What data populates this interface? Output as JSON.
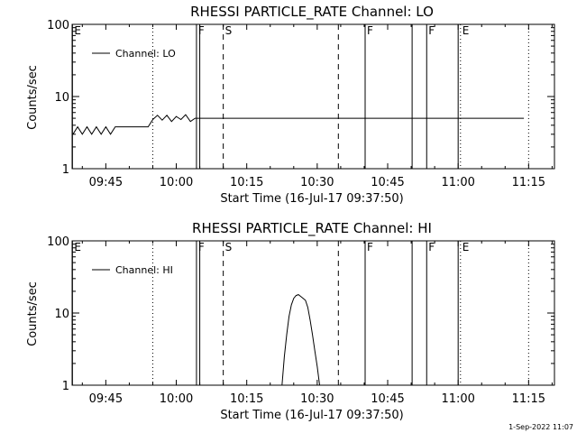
{
  "colors": {
    "background": "#ffffff",
    "foreground": "#000000"
  },
  "footer": {
    "timestamp": "1-Sep-2022 11:07"
  },
  "chart_data": [
    {
      "type": "line",
      "title": "RHESSI PARTICLE_RATE Channel: LO",
      "xlabel": "Start Time (16-Jul-17 09:37:50)",
      "ylabel": "Counts/sec",
      "yscale": "log",
      "ylim": [
        1,
        100
      ],
      "xlim_minutes": [
        37.83,
        78.83
      ],
      "x_tick_minutes": [
        45,
        60,
        75,
        90,
        105,
        120,
        135
      ],
      "x_tick_labels": [
        "09:45",
        "10:00",
        "10:15",
        "10:30",
        "10:45",
        "11:00",
        "11:15"
      ],
      "y_tick_values": [
        1,
        10,
        100
      ],
      "y_tick_labels": [
        "1",
        "10",
        "100"
      ],
      "legend": {
        "label": "Channel: LO",
        "position": "top-left"
      },
      "grid": false,
      "markers": [
        {
          "minute": 37.9,
          "label": "E",
          "style": "solid"
        },
        {
          "minute": 55.0,
          "label": "",
          "style": "dotted"
        },
        {
          "minute": 64.3,
          "label": "F",
          "style": "solid"
        },
        {
          "minute": 65.0,
          "label": "",
          "style": "solid"
        },
        {
          "minute": 70.0,
          "label": "S",
          "style": "dashed"
        },
        {
          "minute": 94.5,
          "label": "",
          "style": "dashed"
        },
        {
          "minute": 100.2,
          "label": "F",
          "style": "solid"
        },
        {
          "minute": 110.2,
          "label": "",
          "style": "solid"
        },
        {
          "minute": 113.3,
          "label": "F",
          "style": "solid"
        },
        {
          "minute": 120.5,
          "label": "E",
          "style": "dotted"
        },
        {
          "minute": 120.0,
          "label": "",
          "style": "solid"
        },
        {
          "minute": 135.0,
          "label": "",
          "style": "dotted"
        }
      ],
      "series": [
        {
          "name": "Channel: LO",
          "x": [
            38.0,
            39.0,
            40.0,
            41.0,
            42.0,
            43.0,
            44.0,
            45.0,
            46.0,
            47.0,
            48.0,
            49.0,
            50.0,
            51.0,
            52.0,
            53.0,
            54.0,
            55.0,
            56.0,
            57.0,
            58.0,
            59.0,
            60.0,
            61.0,
            62.0,
            63.0,
            64.0,
            65.0,
            66.0,
            67.0,
            68.0,
            69.0,
            70.0,
            71.0,
            72.0,
            73.0,
            74.0,
            75.0,
            76.0,
            77.0,
            78.0,
            79.0,
            80.0,
            81.0,
            82.0,
            83.0,
            84.0,
            85.0,
            86.0,
            87.0,
            88.0,
            89.0,
            90.0,
            91.0,
            92.0,
            93.0,
            94.0,
            95.0,
            96.0,
            97.0,
            98.0,
            99.0,
            100.0,
            101.0,
            102.0,
            103.0,
            104.0,
            105.0,
            106.0,
            107.0,
            108.0,
            109.0,
            110.0,
            111.0,
            112.0,
            113.0,
            114.0,
            115.0,
            116.0,
            117.0,
            118.0,
            119.0,
            120.0,
            121.0,
            122.0,
            123.0,
            124.0,
            125.0,
            126.0,
            127.0,
            128.0,
            129.0,
            130.0,
            131.0,
            132.0,
            133.0,
            134.0
          ],
          "y": [
            3.0,
            3.8,
            3.0,
            3.8,
            3.0,
            3.8,
            3.0,
            3.8,
            3.0,
            3.8,
            3.8,
            3.8,
            3.8,
            3.8,
            3.8,
            3.8,
            3.8,
            4.8,
            5.5,
            4.7,
            5.5,
            4.5,
            5.3,
            4.8,
            5.6,
            4.5,
            5.0,
            5.0,
            5.0,
            5.0,
            5.0,
            5.0,
            5.0,
            5.0,
            5.0,
            5.0,
            5.0,
            5.0,
            5.0,
            5.0,
            5.0,
            5.0,
            5.0,
            5.0,
            5.0,
            5.0,
            5.0,
            5.0,
            5.0,
            5.0,
            5.0,
            5.0,
            5.0,
            5.0,
            5.0,
            5.0,
            5.0,
            5.0,
            5.0,
            5.0,
            5.0,
            5.0,
            5.0,
            5.0,
            5.0,
            5.0,
            5.0,
            5.0,
            5.0,
            5.0,
            5.0,
            5.0,
            5.0,
            5.0,
            5.0,
            5.0,
            5.0,
            5.0,
            5.0,
            5.0,
            5.0,
            5.0,
            5.0,
            5.0,
            5.0,
            5.0,
            5.0,
            5.0,
            5.0,
            5.0,
            5.0,
            5.0,
            5.0,
            5.0,
            5.0,
            5.0,
            5.0
          ]
        }
      ]
    },
    {
      "type": "line",
      "title": "RHESSI PARTICLE_RATE Channel: HI",
      "xlabel": "Start Time (16-Jul-17 09:37:50)",
      "ylabel": "Counts/sec",
      "yscale": "log",
      "ylim": [
        1,
        100
      ],
      "x_tick_minutes": [
        45,
        60,
        75,
        90,
        105,
        120,
        135
      ],
      "x_tick_labels": [
        "09:45",
        "10:00",
        "10:15",
        "10:30",
        "10:45",
        "11:00",
        "11:15"
      ],
      "y_tick_values": [
        1,
        10,
        100
      ],
      "y_tick_labels": [
        "1",
        "10",
        "100"
      ],
      "legend": {
        "label": "Channel: HI",
        "position": "top-left"
      },
      "grid": false,
      "markers": [
        {
          "minute": 37.9,
          "label": "E",
          "style": "solid"
        },
        {
          "minute": 55.0,
          "label": "",
          "style": "dotted"
        },
        {
          "minute": 64.3,
          "label": "F",
          "style": "solid"
        },
        {
          "minute": 65.0,
          "label": "",
          "style": "solid"
        },
        {
          "minute": 70.0,
          "label": "S",
          "style": "dashed"
        },
        {
          "minute": 94.5,
          "label": "",
          "style": "dashed"
        },
        {
          "minute": 100.2,
          "label": "F",
          "style": "solid"
        },
        {
          "minute": 110.2,
          "label": "",
          "style": "solid"
        },
        {
          "minute": 113.3,
          "label": "F",
          "style": "solid"
        },
        {
          "minute": 120.5,
          "label": "E",
          "style": "dotted"
        },
        {
          "minute": 120.0,
          "label": "",
          "style": "solid"
        },
        {
          "minute": 135.0,
          "label": "",
          "style": "dotted"
        }
      ],
      "series": [
        {
          "name": "Channel: HI",
          "x": [
            82.5,
            83.0,
            83.5,
            84.0,
            84.5,
            85.0,
            85.5,
            86.0,
            86.5,
            87.0,
            87.5,
            88.0,
            88.5,
            89.0,
            89.5,
            90.0,
            90.5
          ],
          "y": [
            1.0,
            2.5,
            5.0,
            9.0,
            13.0,
            16.0,
            17.5,
            18.0,
            17.0,
            16.0,
            15.0,
            12.0,
            8.0,
            5.0,
            3.0,
            1.8,
            1.0
          ]
        }
      ]
    }
  ]
}
